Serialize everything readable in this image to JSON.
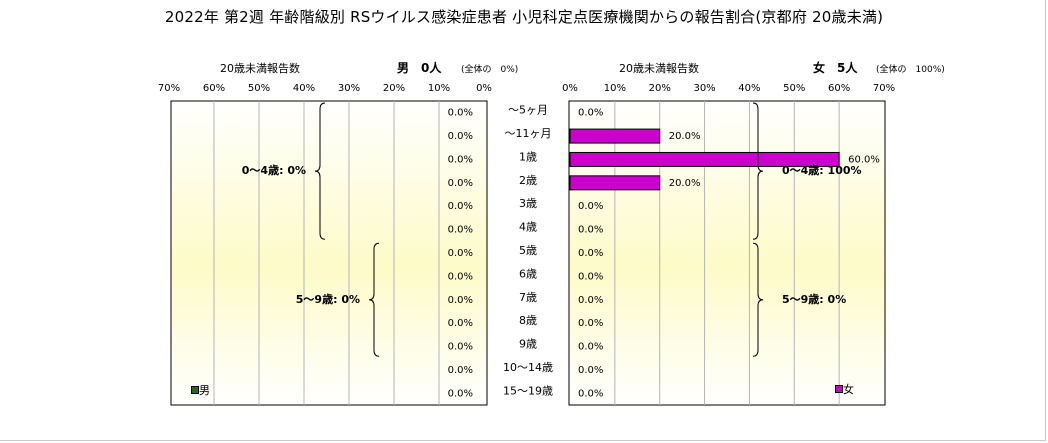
{
  "title": "2022年 第2週 年齢階級別 RSウイルス感染症患者 小児科定点医療機関からの報告割合(京都府 20歳未満)",
  "chart_data": [
    {
      "type": "bar",
      "orientation": "horizontal",
      "direction": "right-to-left",
      "subtitle": "20歳未満報告数",
      "sex_label": "男　0人",
      "total_note": "(全体の　0%)",
      "xlim": [
        0,
        70
      ],
      "x_ticks": [
        "70%",
        "60%",
        "50%",
        "40%",
        "30%",
        "20%",
        "10%",
        "0%"
      ],
      "categories": [
        "～5ヶ月",
        "～11ヶ月",
        "1歳",
        "2歳",
        "3歳",
        "4歳",
        "5歳",
        "6歳",
        "7歳",
        "8歳",
        "9歳",
        "10～14歳",
        "15～19歳"
      ],
      "values": [
        0,
        0,
        0,
        0,
        0,
        0,
        0,
        0,
        0,
        0,
        0,
        0,
        0
      ],
      "data_labels": [
        "0.0%",
        "0.0%",
        "0.0%",
        "0.0%",
        "0.0%",
        "0.0%",
        "0.0%",
        "0.0%",
        "0.0%",
        "0.0%",
        "0.0%",
        "0.0%",
        "0.0%"
      ],
      "group_labels": [
        {
          "text": "0～4歳: 0%",
          "from": 0,
          "to": 5
        },
        {
          "text": "5～9歳: 0%",
          "from": 6,
          "to": 10
        }
      ],
      "legend": "男",
      "legend_position": "bottom-left",
      "color": "#1f6b1f",
      "grid": true
    },
    {
      "type": "bar",
      "orientation": "horizontal",
      "direction": "left-to-right",
      "subtitle": "20歳未満報告数",
      "sex_label": "女　5人",
      "total_note": "(全体の　100%)",
      "xlim": [
        0,
        70
      ],
      "x_ticks": [
        "0%",
        "10%",
        "20%",
        "30%",
        "40%",
        "50%",
        "60%",
        "70%"
      ],
      "categories": [
        "～5ヶ月",
        "～11ヶ月",
        "1歳",
        "2歳",
        "3歳",
        "4歳",
        "5歳",
        "6歳",
        "7歳",
        "8歳",
        "9歳",
        "10～14歳",
        "15～19歳"
      ],
      "values": [
        0,
        20,
        60,
        20,
        0,
        0,
        0,
        0,
        0,
        0,
        0,
        0,
        0
      ],
      "data_labels": [
        "0.0%",
        "20.0%",
        "60.0%",
        "20.0%",
        "0.0%",
        "0.0%",
        "0.0%",
        "0.0%",
        "0.0%",
        "0.0%",
        "0.0%",
        "0.0%",
        "0.0%"
      ],
      "group_labels": [
        {
          "text": "0～4歳: 100%",
          "from": 0,
          "to": 5
        },
        {
          "text": "5～9歳: 0%",
          "from": 6,
          "to": 10
        }
      ],
      "legend": "女",
      "legend_position": "bottom-right",
      "color": "#cc00cc",
      "grid": true
    }
  ]
}
